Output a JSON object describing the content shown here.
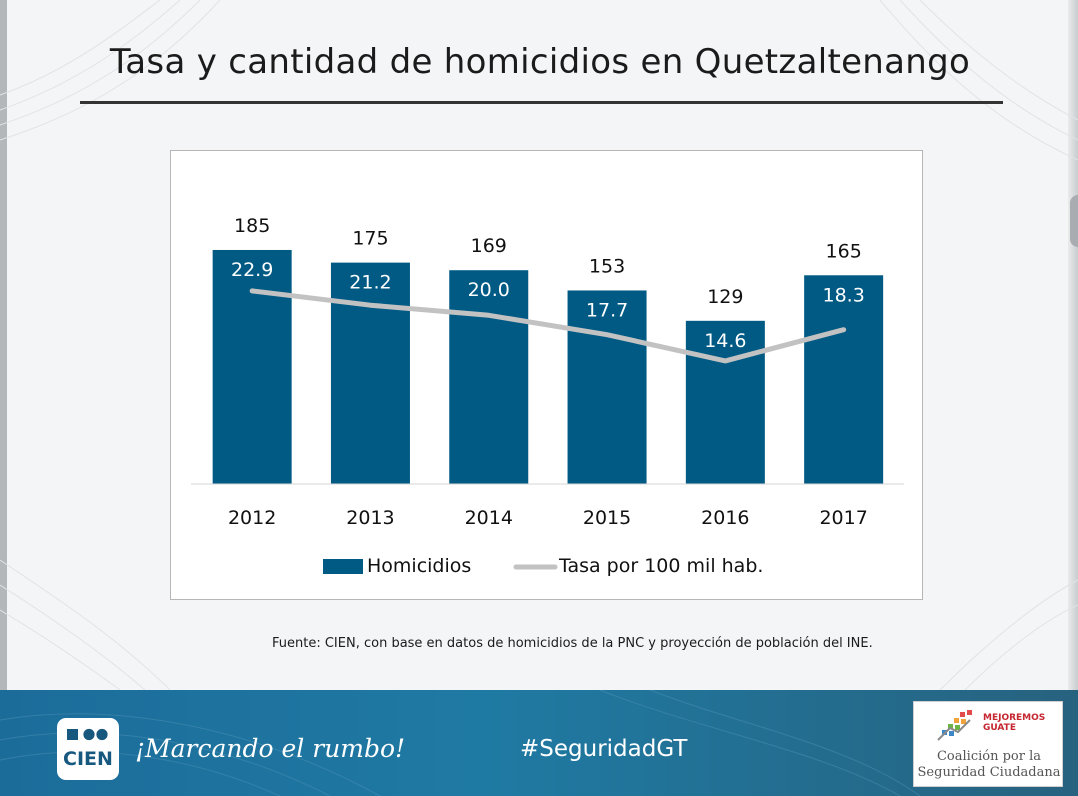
{
  "slide": {
    "title": "Tasa y cantidad de homicidios en Quetzaltenango",
    "source": "Fuente: CIEN, con base en datos de homicidios de la PNC y proyección de población del INE."
  },
  "chart_data": {
    "type": "bar",
    "title": "Tasa y cantidad de homicidios en Quetzaltenango",
    "categories": [
      "2012",
      "2013",
      "2014",
      "2015",
      "2016",
      "2017"
    ],
    "series": [
      {
        "name": "Homicidios",
        "type": "bar",
        "color": "#005a84",
        "values": [
          185,
          175,
          169,
          153,
          129,
          165
        ]
      },
      {
        "name": "Tasa por 100 mil hab.",
        "type": "line",
        "color": "#c2c2c2",
        "values": [
          22.9,
          21.2,
          20.0,
          17.7,
          14.6,
          18.3
        ]
      }
    ],
    "bar_labels": [
      "185",
      "175",
      "169",
      "153",
      "129",
      "165"
    ],
    "line_labels": [
      "22.9",
      "21.2",
      "20.0",
      "17.7",
      "14.6",
      "18.3"
    ],
    "bar_ylim": [
      0,
      200
    ],
    "line_ylim": [
      0,
      30
    ],
    "legend_position": "bottom",
    "grid": false,
    "xlabel": "",
    "ylabel": ""
  },
  "footer": {
    "logo_text": "CIEN",
    "slogan": "¡Marcando el rumbo!",
    "hashtag": "#SeguridadGT",
    "partner_brand_line1": "MEJOREMOS",
    "partner_brand_line2": "GUATE",
    "partner_name_line1": "Coalición por la",
    "partner_name_line2": "Seguridad Ciudadana"
  }
}
